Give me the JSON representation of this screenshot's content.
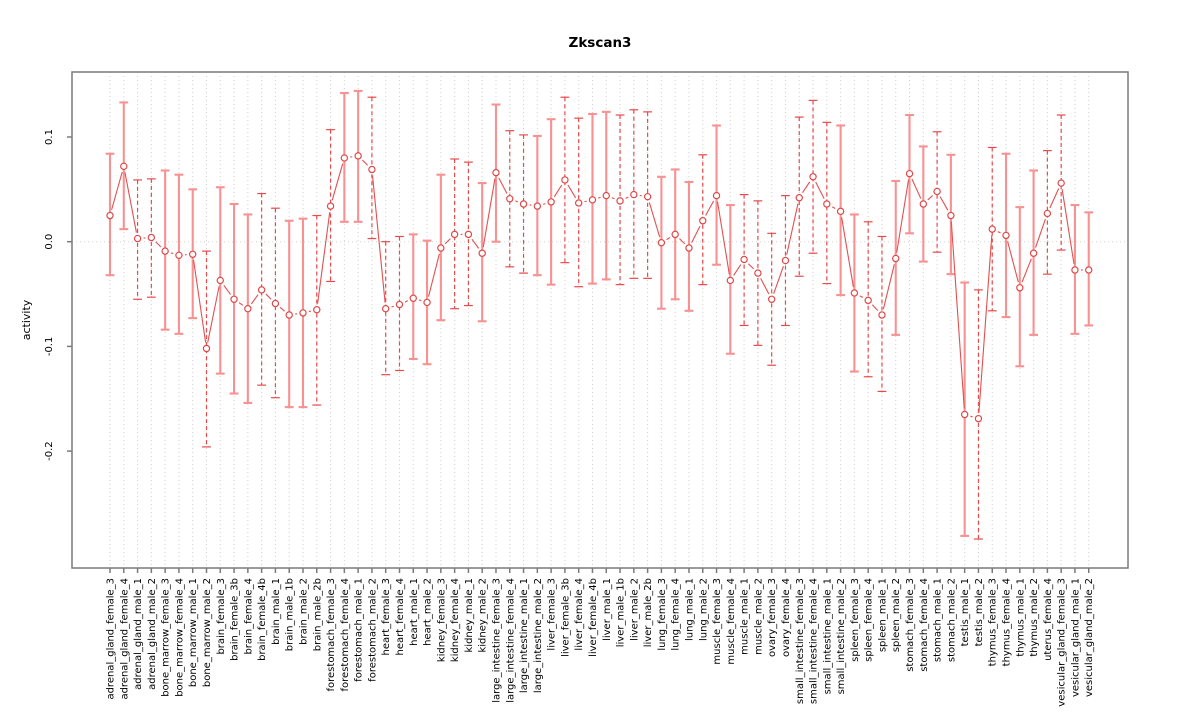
{
  "chart_data": {
    "type": "scatter",
    "title": "Zkscan3",
    "xlabel": "",
    "ylabel": "activity",
    "ylim": [
      -0.311,
      0.162
    ],
    "yticks": [
      0.1,
      0.0,
      -0.1,
      -0.2
    ],
    "ytick_labels": [
      "0.1",
      "0.0",
      "-0.1",
      "-0.2"
    ],
    "grid": "dotted vertical gridline per category, dotted horizontal line at y=0",
    "legend_position": "none",
    "marker": "open-circle with error bars, points connected by line segments",
    "colors": {
      "point": "#e04848",
      "connector_line": "#e25050",
      "solid_error_bar": "#f89191",
      "dashed_error_bar": "#e84a4a",
      "gridline": "#cfcfcf",
      "zero_line": "#d4d4d4",
      "plot_border": "#7a7a7a",
      "tick": "#7a7a7a",
      "text": "#000000",
      "background": "#ffffff"
    },
    "points": [
      {
        "label": "adrenal_gland_female_3",
        "value": 0.025,
        "lo": -0.032,
        "hi": 0.084,
        "bar": "solid"
      },
      {
        "label": "adrenal_gland_female_4",
        "value": 0.072,
        "lo": 0.012,
        "hi": 0.133,
        "bar": "solid"
      },
      {
        "label": "adrenal_gland_male_1",
        "value": 0.003,
        "lo": -0.055,
        "hi": 0.059,
        "bar": "dashed"
      },
      {
        "label": "adrenal_gland_male_2",
        "value": 0.004,
        "lo": -0.053,
        "hi": 0.06,
        "bar": "dashed"
      },
      {
        "label": "bone_marrow_female_3",
        "value": -0.009,
        "lo": -0.084,
        "hi": 0.068,
        "bar": "solid"
      },
      {
        "label": "bone_marrow_female_4",
        "value": -0.013,
        "lo": -0.088,
        "hi": 0.064,
        "bar": "solid"
      },
      {
        "label": "bone_marrow_male_1",
        "value": -0.012,
        "lo": -0.073,
        "hi": 0.05,
        "bar": "solid"
      },
      {
        "label": "bone_marrow_male_2",
        "value": -0.102,
        "lo": -0.196,
        "hi": -0.009,
        "bar": "dashed"
      },
      {
        "label": "brain_female_3",
        "value": -0.037,
        "lo": -0.126,
        "hi": 0.052,
        "bar": "solid"
      },
      {
        "label": "brain_female_3b",
        "value": -0.055,
        "lo": -0.145,
        "hi": 0.036,
        "bar": "solid"
      },
      {
        "label": "brain_female_4",
        "value": -0.064,
        "lo": -0.154,
        "hi": 0.026,
        "bar": "solid"
      },
      {
        "label": "brain_female_4b",
        "value": -0.046,
        "lo": -0.137,
        "hi": 0.046,
        "bar": "dashed"
      },
      {
        "label": "brain_male_1",
        "value": -0.059,
        "lo": -0.149,
        "hi": 0.032,
        "bar": "dashed"
      },
      {
        "label": "brain_male_1b",
        "value": -0.07,
        "lo": -0.158,
        "hi": 0.02,
        "bar": "solid"
      },
      {
        "label": "brain_male_2",
        "value": -0.068,
        "lo": -0.158,
        "hi": 0.022,
        "bar": "solid"
      },
      {
        "label": "brain_male_2b",
        "value": -0.065,
        "lo": -0.156,
        "hi": 0.025,
        "bar": "dashed"
      },
      {
        "label": "forestomach_female_3",
        "value": 0.034,
        "lo": -0.038,
        "hi": 0.107,
        "bar": "dashed"
      },
      {
        "label": "forestomach_female_4",
        "value": 0.08,
        "lo": 0.019,
        "hi": 0.142,
        "bar": "solid"
      },
      {
        "label": "forestomach_male_1",
        "value": 0.082,
        "lo": 0.019,
        "hi": 0.144,
        "bar": "solid"
      },
      {
        "label": "forestomach_male_2",
        "value": 0.069,
        "lo": 0.003,
        "hi": 0.138,
        "bar": "dashed"
      },
      {
        "label": "heart_female_3",
        "value": -0.064,
        "lo": -0.127,
        "hi": 0.0,
        "bar": "dashed"
      },
      {
        "label": "heart_female_4",
        "value": -0.06,
        "lo": -0.123,
        "hi": 0.005,
        "bar": "dashed"
      },
      {
        "label": "heart_male_1",
        "value": -0.054,
        "lo": -0.112,
        "hi": 0.007,
        "bar": "solid"
      },
      {
        "label": "heart_male_2",
        "value": -0.058,
        "lo": -0.117,
        "hi": 0.001,
        "bar": "solid"
      },
      {
        "label": "kidney_female_3",
        "value": -0.006,
        "lo": -0.075,
        "hi": 0.064,
        "bar": "solid"
      },
      {
        "label": "kidney_female_4",
        "value": 0.007,
        "lo": -0.064,
        "hi": 0.079,
        "bar": "dashed"
      },
      {
        "label": "kidney_male_1",
        "value": 0.007,
        "lo": -0.061,
        "hi": 0.076,
        "bar": "dashed"
      },
      {
        "label": "kidney_male_2",
        "value": -0.011,
        "lo": -0.076,
        "hi": 0.056,
        "bar": "solid"
      },
      {
        "label": "large_intestine_female_3",
        "value": 0.066,
        "lo": 0.0,
        "hi": 0.131,
        "bar": "solid"
      },
      {
        "label": "large_intestine_female_4",
        "value": 0.041,
        "lo": -0.024,
        "hi": 0.106,
        "bar": "dashed"
      },
      {
        "label": "large_intestine_male_1",
        "value": 0.036,
        "lo": -0.03,
        "hi": 0.102,
        "bar": "dashed"
      },
      {
        "label": "large_intestine_male_2",
        "value": 0.034,
        "lo": -0.032,
        "hi": 0.101,
        "bar": "solid"
      },
      {
        "label": "liver_female_3",
        "value": 0.038,
        "lo": -0.041,
        "hi": 0.117,
        "bar": "solid"
      },
      {
        "label": "liver_female_3b",
        "value": 0.059,
        "lo": -0.02,
        "hi": 0.138,
        "bar": "dashed"
      },
      {
        "label": "liver_female_4",
        "value": 0.037,
        "lo": -0.043,
        "hi": 0.118,
        "bar": "dashed"
      },
      {
        "label": "liver_female_4b",
        "value": 0.04,
        "lo": -0.04,
        "hi": 0.122,
        "bar": "solid"
      },
      {
        "label": "liver_male_1",
        "value": 0.044,
        "lo": -0.036,
        "hi": 0.124,
        "bar": "solid"
      },
      {
        "label": "liver_male_1b",
        "value": 0.039,
        "lo": -0.041,
        "hi": 0.121,
        "bar": "dashed"
      },
      {
        "label": "liver_male_2",
        "value": 0.045,
        "lo": -0.035,
        "hi": 0.126,
        "bar": "dashed"
      },
      {
        "label": "liver_male_2b",
        "value": 0.043,
        "lo": -0.035,
        "hi": 0.124,
        "bar": "dashed"
      },
      {
        "label": "lung_female_3",
        "value": -0.001,
        "lo": -0.064,
        "hi": 0.062,
        "bar": "solid"
      },
      {
        "label": "lung_female_4",
        "value": 0.007,
        "lo": -0.055,
        "hi": 0.069,
        "bar": "solid"
      },
      {
        "label": "lung_male_1",
        "value": -0.006,
        "lo": -0.066,
        "hi": 0.057,
        "bar": "solid"
      },
      {
        "label": "lung_male_2",
        "value": 0.02,
        "lo": -0.041,
        "hi": 0.083,
        "bar": "dashed"
      },
      {
        "label": "muscle_female_3",
        "value": 0.044,
        "lo": -0.022,
        "hi": 0.111,
        "bar": "solid"
      },
      {
        "label": "muscle_female_4",
        "value": -0.037,
        "lo": -0.107,
        "hi": 0.035,
        "bar": "solid"
      },
      {
        "label": "muscle_male_1",
        "value": -0.017,
        "lo": -0.08,
        "hi": 0.045,
        "bar": "dashed"
      },
      {
        "label": "muscle_male_2",
        "value": -0.03,
        "lo": -0.099,
        "hi": 0.039,
        "bar": "dashed"
      },
      {
        "label": "ovary_female_3",
        "value": -0.055,
        "lo": -0.118,
        "hi": 0.008,
        "bar": "dashed"
      },
      {
        "label": "ovary_female_4",
        "value": -0.018,
        "lo": -0.08,
        "hi": 0.044,
        "bar": "dashed"
      },
      {
        "label": "small_intestine_female_3",
        "value": 0.042,
        "lo": -0.033,
        "hi": 0.119,
        "bar": "dashed"
      },
      {
        "label": "small_intestine_female_4",
        "value": 0.062,
        "lo": -0.011,
        "hi": 0.135,
        "bar": "dashed"
      },
      {
        "label": "small_intestine_male_1",
        "value": 0.036,
        "lo": -0.04,
        "hi": 0.114,
        "bar": "dashed"
      },
      {
        "label": "small_intestine_male_2",
        "value": 0.029,
        "lo": -0.051,
        "hi": 0.111,
        "bar": "solid"
      },
      {
        "label": "spleen_female_3",
        "value": -0.049,
        "lo": -0.124,
        "hi": 0.026,
        "bar": "solid"
      },
      {
        "label": "spleen_female_4",
        "value": -0.056,
        "lo": -0.129,
        "hi": 0.019,
        "bar": "dashed"
      },
      {
        "label": "spleen_male_1",
        "value": -0.07,
        "lo": -0.143,
        "hi": 0.005,
        "bar": "dashed"
      },
      {
        "label": "spleen_male_2",
        "value": -0.016,
        "lo": -0.089,
        "hi": 0.058,
        "bar": "solid"
      },
      {
        "label": "stomach_female_3",
        "value": 0.065,
        "lo": 0.008,
        "hi": 0.121,
        "bar": "solid"
      },
      {
        "label": "stomach_female_4",
        "value": 0.036,
        "lo": -0.019,
        "hi": 0.091,
        "bar": "solid"
      },
      {
        "label": "stomach_male_1",
        "value": 0.048,
        "lo": -0.01,
        "hi": 0.105,
        "bar": "dashed"
      },
      {
        "label": "stomach_male_2",
        "value": 0.025,
        "lo": -0.031,
        "hi": 0.083,
        "bar": "solid"
      },
      {
        "label": "testis_male_1",
        "value": -0.165,
        "lo": -0.281,
        "hi": -0.039,
        "bar": "solid"
      },
      {
        "label": "testis_male_2",
        "value": -0.169,
        "lo": -0.284,
        "hi": -0.046,
        "bar": "dashed"
      },
      {
        "label": "thymus_female_3",
        "value": 0.012,
        "lo": -0.066,
        "hi": 0.09,
        "bar": "dashed"
      },
      {
        "label": "thymus_female_4",
        "value": 0.006,
        "lo": -0.072,
        "hi": 0.084,
        "bar": "solid"
      },
      {
        "label": "thymus_male_1",
        "value": -0.044,
        "lo": -0.119,
        "hi": 0.033,
        "bar": "solid"
      },
      {
        "label": "thymus_male_2",
        "value": -0.011,
        "lo": -0.089,
        "hi": 0.068,
        "bar": "solid"
      },
      {
        "label": "uterus_female_4",
        "value": 0.027,
        "lo": -0.031,
        "hi": 0.087,
        "bar": "dashed"
      },
      {
        "label": "vesicular_gland_female_3",
        "value": 0.056,
        "lo": -0.008,
        "hi": 0.121,
        "bar": "dashed"
      },
      {
        "label": "vesicular_gland_male_1",
        "value": -0.027,
        "lo": -0.088,
        "hi": 0.035,
        "bar": "solid"
      },
      {
        "label": "vesicular_gland_male_2",
        "value": -0.027,
        "lo": -0.08,
        "hi": 0.028,
        "bar": "solid"
      }
    ]
  }
}
